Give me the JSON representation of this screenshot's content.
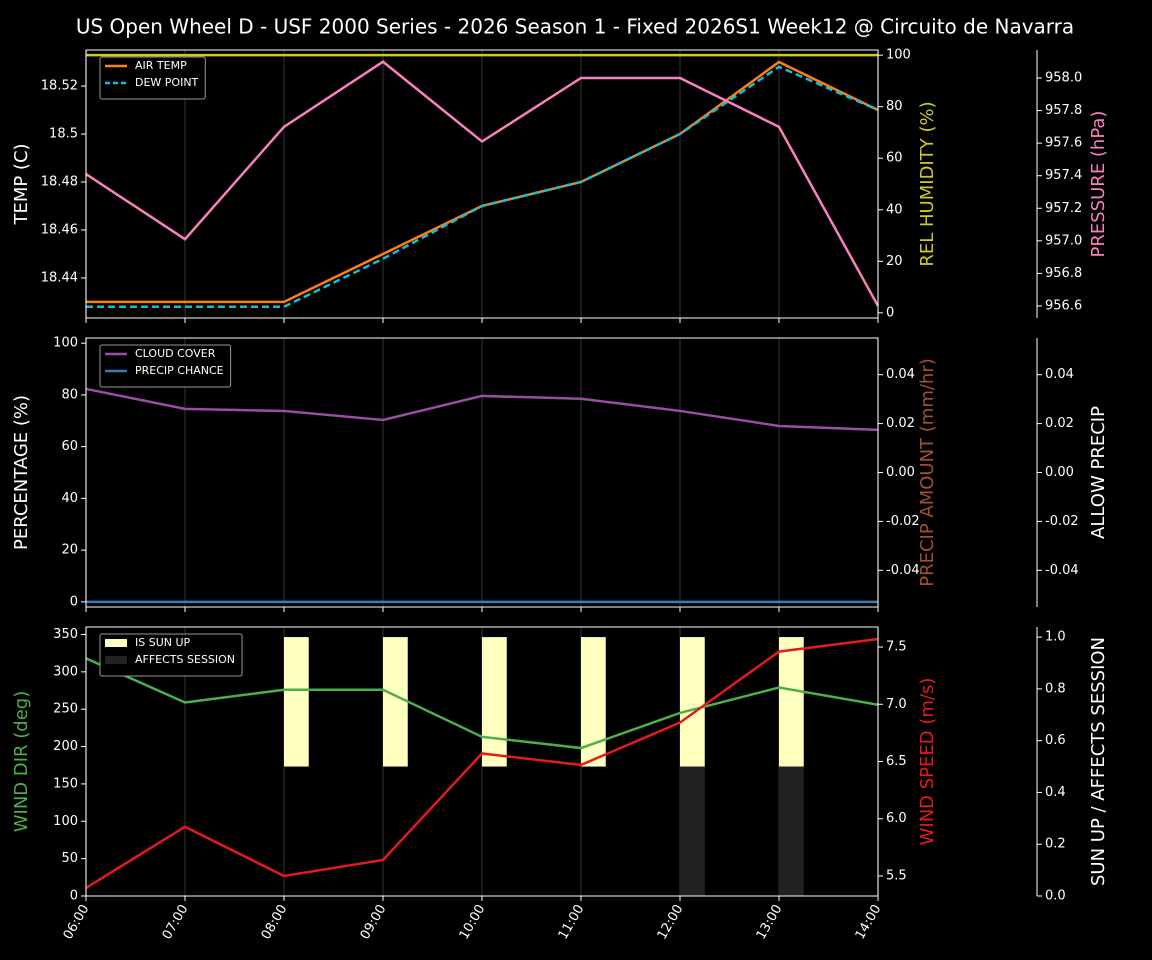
{
  "chart_data": [
    {
      "type": "line",
      "title": "US Open Wheel D - USF 2000 Series  - 2026 Season 1 - Fixed 2026S1 Week12 @ Circuito de Navarra",
      "ylabel": "TEMP (C)",
      "ylabel_color": "#ffffff",
      "ylim": [
        18.4233,
        18.535
      ],
      "yticks": [
        18.44,
        18.46,
        18.48,
        18.5,
        18.52
      ],
      "y2label": "REL HUMIDITY (%)",
      "y2label_color": "#cccc22",
      "y2lim": [
        -2,
        102
      ],
      "y2ticks": [
        0,
        20,
        40,
        60,
        80,
        100
      ],
      "y3label": "PRESSURE (hPa)",
      "y3label_color": "#f781bf",
      "y3lim": [
        956.526,
        958.172
      ],
      "y3ticks": [
        956.6,
        956.8,
        {
          "value": 957,
          "label": "957.0"
        },
        957.2,
        957.4,
        957.6,
        957.8,
        {
          "value": 958,
          "label": "958.0"
        }
      ],
      "series": [
        {
          "name": "AIR TEMP",
          "color": "#ff7f0e",
          "values": [
            18.43,
            18.43,
            18.43,
            18.45,
            18.47,
            18.48,
            18.5,
            18.53,
            18.51
          ]
        },
        {
          "name": "DEW POINT",
          "color": "#17becf",
          "dash": true,
          "values": [
            18.428,
            18.428,
            18.428,
            18.448,
            18.47,
            18.48,
            18.5,
            18.528,
            18.51
          ]
        },
        {
          "color": "#cccc22",
          "axis": "y2",
          "values": [
            100,
            100,
            100,
            100,
            100,
            100,
            100,
            100,
            100
          ]
        },
        {
          "color": "#f781bf",
          "axis": "y3",
          "values": [
            957.41,
            957.01,
            957.7,
            958.1,
            957.61,
            958.0,
            958.0,
            957.7,
            956.6
          ]
        }
      ]
    },
    {
      "type": "line",
      "ylabel": "PERCENTAGE (%)",
      "ylabel_color": "#ffffff",
      "ylim": [
        -2,
        102
      ],
      "yticks": [
        0,
        20,
        40,
        60,
        80,
        100
      ],
      "y2label": "PRECIP AMOUNT (mm/hr)",
      "y2label_color": "#a0522d",
      "y2lim": [
        -0.055,
        0.055
      ],
      "y2ticks": [
        -0.04,
        -0.02,
        {
          "value": 0,
          "label": "0.00"
        },
        0.02,
        0.04
      ],
      "y3label": "ALLOW PRECIP",
      "y3label_color": "#ffffff",
      "y3lim": [
        -0.055,
        0.055
      ],
      "y3ticks": [
        -0.04,
        -0.02,
        {
          "value": 0,
          "label": "0.00"
        },
        0.02,
        0.04
      ],
      "series": [
        {
          "name": "CLOUD COVER",
          "color": "#984ea3",
          "values": [
            82.3,
            74.6,
            73.8,
            70.3,
            79.6,
            78.5,
            73.8,
            68,
            66.5
          ]
        },
        {
          "name": "PRECIP CHANCE",
          "color": "#377eb8",
          "values": [
            0,
            0,
            0,
            0,
            0,
            0,
            0,
            0,
            0
          ]
        }
      ]
    },
    {
      "type": "line",
      "categories": [
        "06:00",
        "07:00",
        "08:00",
        "09:00",
        "10:00",
        "11:00",
        "12:00",
        "13:00",
        "14:00"
      ],
      "ylabel": "WIND DIR (deg)",
      "ylabel_color": "#4daf4a",
      "ylim": [
        0,
        360
      ],
      "yticks": [
        0,
        50,
        100,
        150,
        200,
        250,
        300,
        350
      ],
      "y2label": "WIND SPEED (m/s)",
      "y2label_color": "#e41a1c",
      "y2lim": [
        5.325,
        7.675
      ],
      "y2ticks": [
        5.5,
        {
          "value": 6,
          "label": "6.0"
        },
        6.5,
        {
          "value": 7,
          "label": "7.0"
        },
        7.5
      ],
      "y3label": "SUN UP / AFFECTS SESSION",
      "y3label_color": "#ffffff",
      "y3lim": [
        0,
        1.039
      ],
      "y3ticks": [
        {
          "value": 0,
          "label": "0.0"
        },
        0.2,
        0.4,
        0.6,
        0.8,
        {
          "value": 1,
          "label": "1.0"
        }
      ],
      "series": [
        {
          "name": "IS SUN UP",
          "type": "bar",
          "axis": "y3",
          "color": "#ffffc0",
          "values": [
            0,
            0,
            1,
            1,
            1,
            1,
            1,
            1,
            0
          ]
        },
        {
          "name": "AFFECTS SESSION",
          "type": "bar",
          "axis": "y3",
          "color": "#222222",
          "values": [
            0,
            0,
            0,
            0,
            0,
            0,
            0.5,
            0.5,
            0
          ]
        },
        {
          "color": "#4daf4a",
          "values": [
            318,
            259,
            276,
            276,
            213,
            198,
            245,
            279,
            256
          ]
        },
        {
          "color": "#e41a1c",
          "axis": "y2",
          "values": [
            5.395,
            5.93,
            5.5,
            5.64,
            6.57,
            6.47,
            6.84,
            7.46,
            7.57
          ]
        }
      ]
    }
  ]
}
